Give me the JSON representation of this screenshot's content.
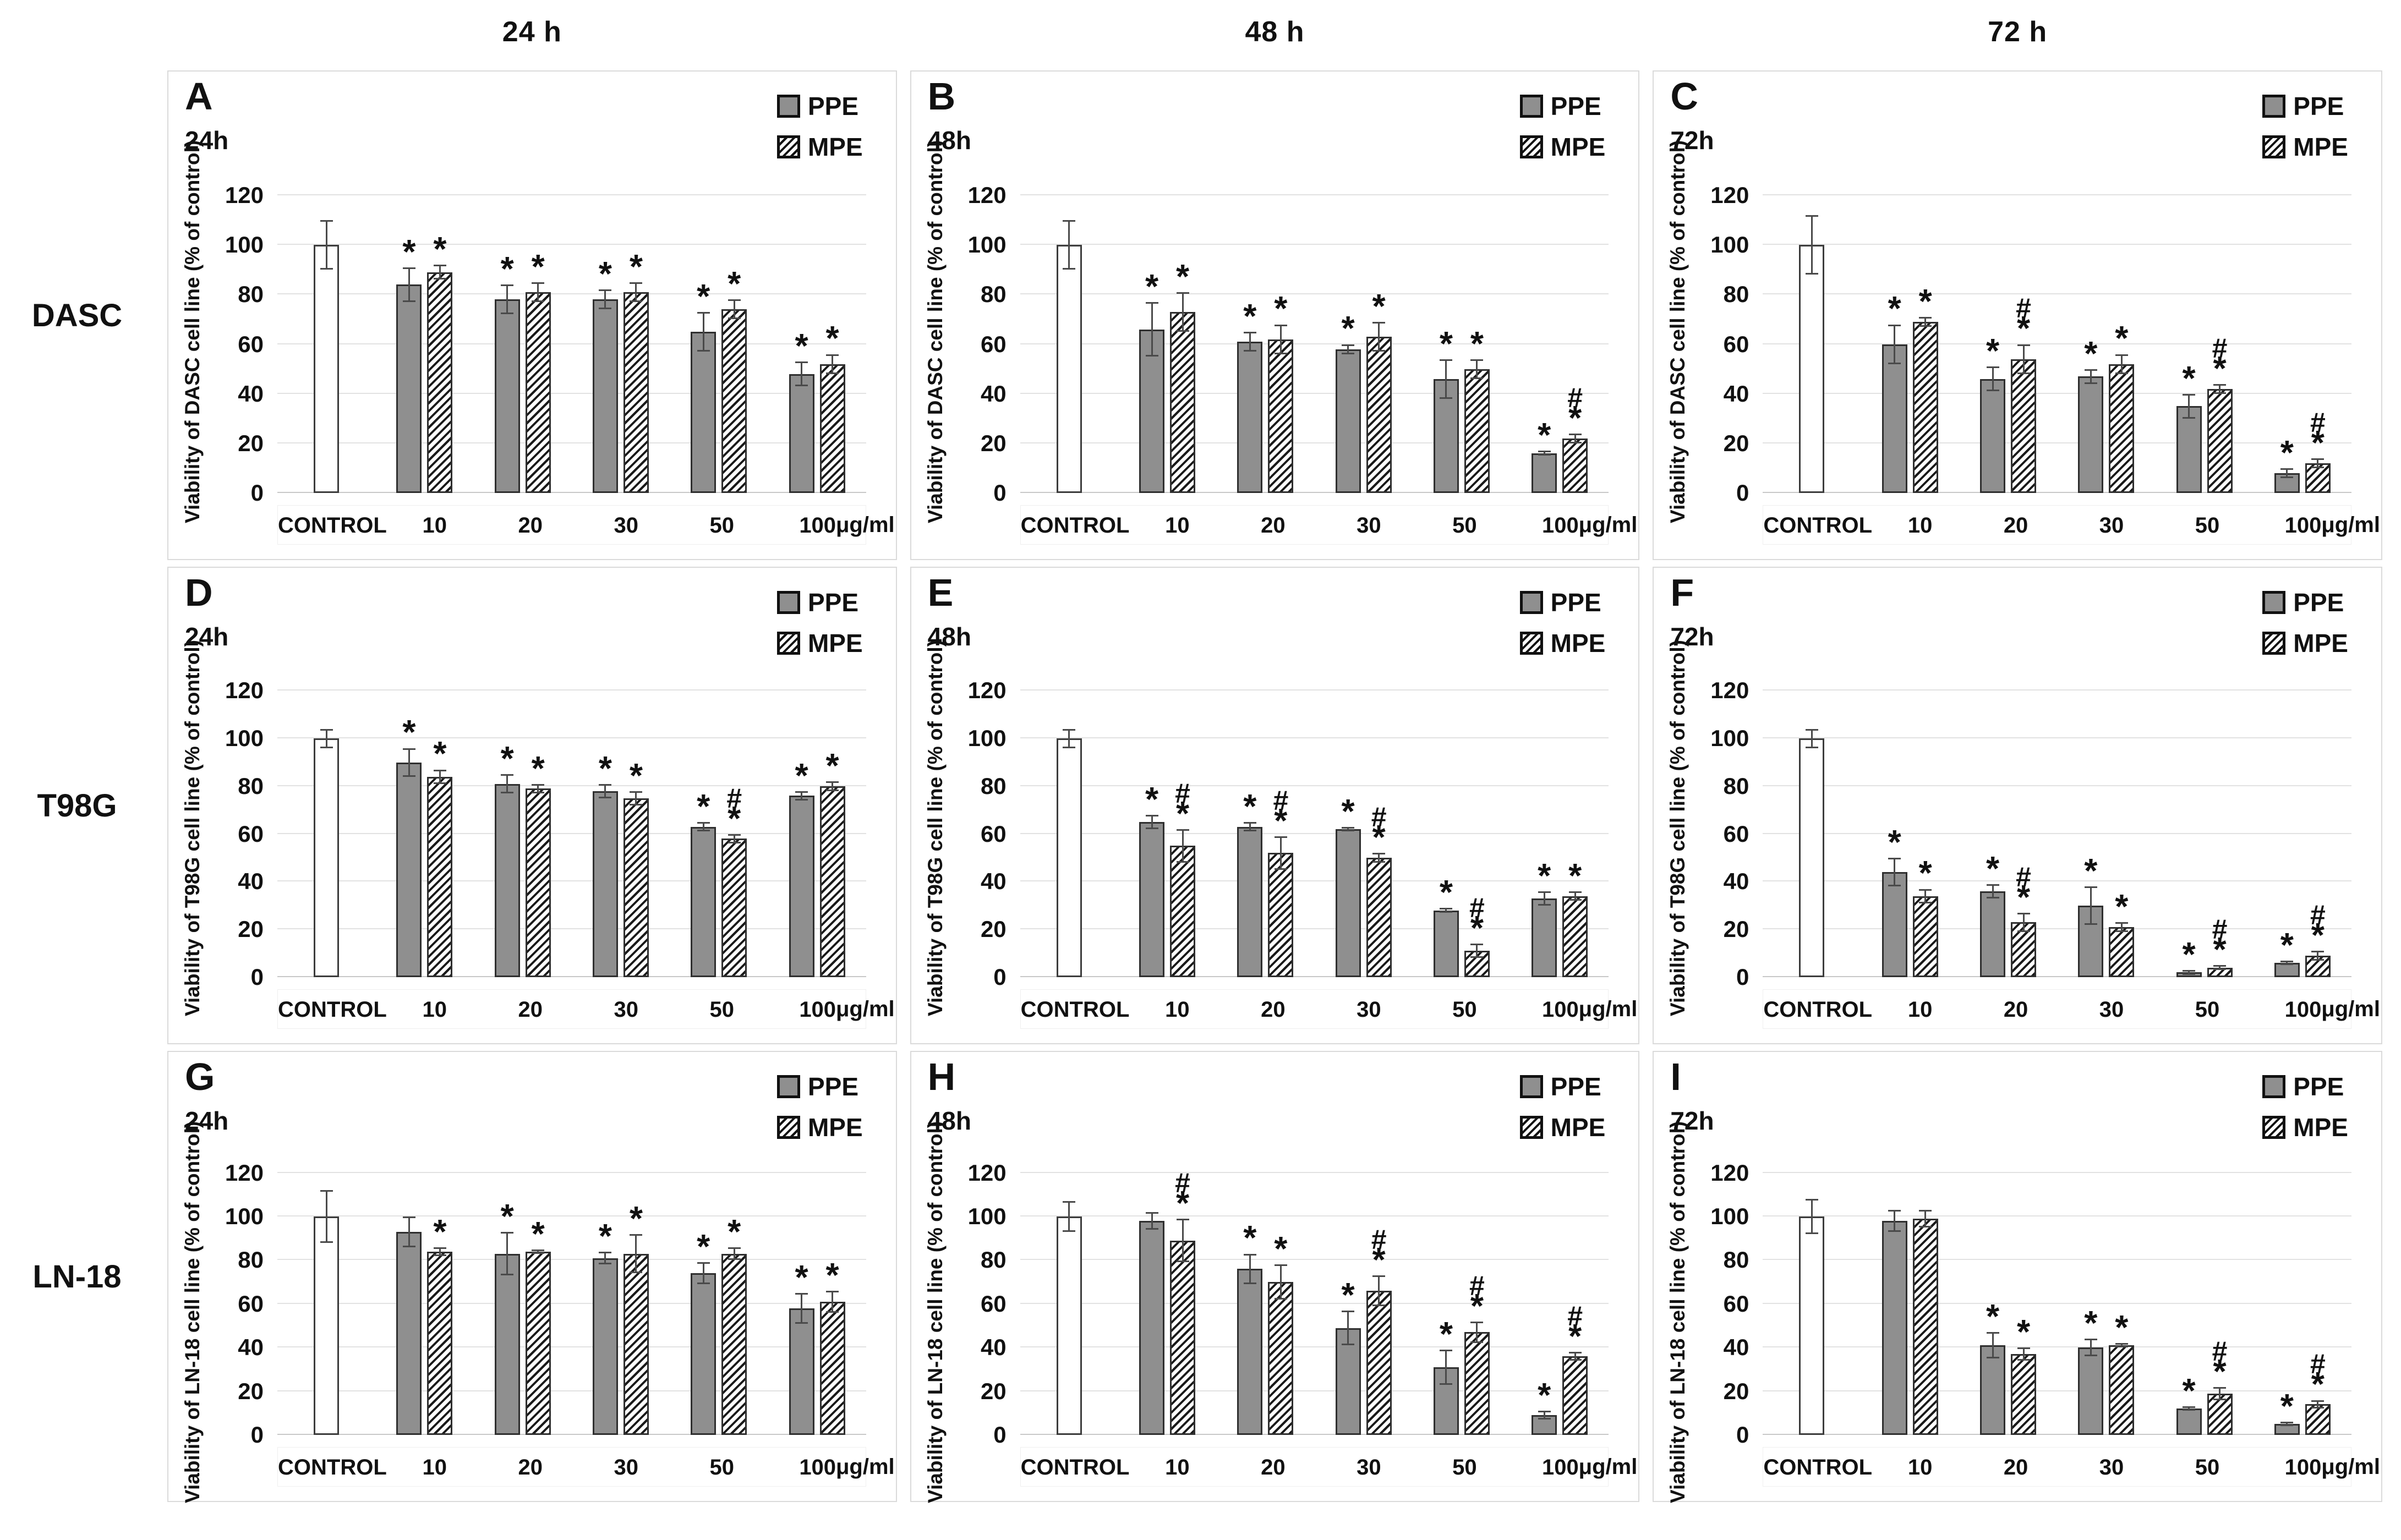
{
  "figure": {
    "col_headers": [
      "24 h",
      "48 h",
      "72 h"
    ],
    "row_labels": [
      "DASC",
      "T98G",
      "LN-18"
    ],
    "legend": [
      "PPE",
      "MPE"
    ],
    "x_categories": [
      "CONTROL",
      "10",
      "20",
      "30",
      "50",
      "100"
    ],
    "x_unit": "μg/ml",
    "y_ticks": [
      0,
      20,
      40,
      60,
      80,
      100,
      120
    ],
    "y_max": 130,
    "colors": {
      "ppe_fill": "#8f8f8f",
      "control_fill": "#ffffff",
      "bar_border": "#2f2f2f",
      "grid": "#e2e2e2",
      "hatch": "#1a1a1a",
      "text": "#111111"
    }
  },
  "chart_data": [
    {
      "type": "bar",
      "panel": "A",
      "row": "DASC",
      "time": "24h",
      "ylabel": "Viability of DASC cell line (% of control)",
      "control": {
        "label": "CONTROL",
        "value": 100,
        "err": 10
      },
      "series": [
        {
          "name": "PPE",
          "values": [
            84,
            78,
            78,
            65,
            48
          ],
          "err": [
            7,
            6,
            4,
            8,
            5
          ],
          "sig": [
            "*",
            "*",
            "*",
            "*",
            "*"
          ]
        },
        {
          "name": "MPE",
          "values": [
            89,
            81,
            81,
            74,
            52
          ],
          "err": [
            3,
            4,
            4,
            4,
            4
          ],
          "sig": [
            "*",
            "*",
            "*",
            "*",
            "*"
          ]
        }
      ]
    },
    {
      "type": "bar",
      "panel": "B",
      "row": "DASC",
      "time": "48h",
      "ylabel": "Viability of DASC cell line (% of control)",
      "control": {
        "label": "CONTROL",
        "value": 100,
        "err": 10
      },
      "series": [
        {
          "name": "PPE",
          "values": [
            66,
            61,
            58,
            46,
            16
          ],
          "err": [
            11,
            4,
            2,
            8,
            1
          ],
          "sig": [
            "*",
            "*",
            "*",
            "*",
            "*"
          ]
        },
        {
          "name": "MPE",
          "values": [
            73,
            62,
            63,
            50,
            22
          ],
          "err": [
            8,
            6,
            6,
            4,
            2
          ],
          "sig": [
            "*",
            "*",
            "*",
            "*",
            "#*"
          ]
        }
      ]
    },
    {
      "type": "bar",
      "panel": "C",
      "row": "DASC",
      "time": "72h",
      "ylabel": "Viability of DASC cell line (% of control)",
      "control": {
        "label": "CONTROL",
        "value": 100,
        "err": 12
      },
      "series": [
        {
          "name": "PPE",
          "values": [
            60,
            46,
            47,
            35,
            8
          ],
          "err": [
            8,
            5,
            3,
            5,
            2
          ],
          "sig": [
            "*",
            "*",
            "*",
            "*",
            "*"
          ]
        },
        {
          "name": "MPE",
          "values": [
            69,
            54,
            52,
            42,
            12
          ],
          "err": [
            2,
            6,
            4,
            2,
            2
          ],
          "sig": [
            "*",
            "#*",
            "*",
            "#*",
            "#*"
          ]
        }
      ]
    },
    {
      "type": "bar",
      "panel": "D",
      "row": "T98G",
      "time": "24h",
      "ylabel": "Viability of T98G cell line (% of control)",
      "control": {
        "label": "CONTROL",
        "value": 100,
        "err": 4
      },
      "series": [
        {
          "name": "PPE",
          "values": [
            90,
            81,
            78,
            63,
            76
          ],
          "err": [
            6,
            4,
            3,
            2,
            2
          ],
          "sig": [
            "*",
            "*",
            "*",
            "*",
            "*"
          ]
        },
        {
          "name": "MPE",
          "values": [
            84,
            79,
            75,
            58,
            80
          ],
          "err": [
            3,
            2,
            3,
            2,
            2
          ],
          "sig": [
            "*",
            "*",
            "*",
            "#*",
            "*"
          ]
        }
      ]
    },
    {
      "type": "bar",
      "panel": "E",
      "row": "T98G",
      "time": "48h",
      "ylabel": "Viability of T98G cell line (% of control)",
      "control": {
        "label": "CONTROL",
        "value": 100,
        "err": 4
      },
      "series": [
        {
          "name": "PPE",
          "values": [
            65,
            63,
            62,
            28,
            33
          ],
          "err": [
            3,
            2,
            1,
            1,
            3
          ],
          "sig": [
            "*",
            "*",
            "*",
            "*",
            "*"
          ]
        },
        {
          "name": "MPE",
          "values": [
            55,
            52,
            50,
            11,
            34
          ],
          "err": [
            7,
            7,
            2,
            3,
            2
          ],
          "sig": [
            "#*",
            "#*",
            "#*",
            "#*",
            "*"
          ]
        }
      ]
    },
    {
      "type": "bar",
      "panel": "F",
      "row": "T98G",
      "time": "72h",
      "ylabel": "Viability of T98G cell line (% of control)",
      "control": {
        "label": "CONTROL",
        "value": 100,
        "err": 4
      },
      "series": [
        {
          "name": "PPE",
          "values": [
            44,
            36,
            30,
            2,
            6
          ],
          "err": [
            6,
            3,
            8,
            1,
            1
          ],
          "sig": [
            "*",
            "*",
            "*",
            "*",
            "*"
          ]
        },
        {
          "name": "MPE",
          "values": [
            34,
            23,
            21,
            4,
            9
          ],
          "err": [
            3,
            4,
            2,
            1,
            2
          ],
          "sig": [
            "*",
            "#*",
            "*",
            "#*",
            "#*"
          ]
        }
      ]
    },
    {
      "type": "bar",
      "panel": "G",
      "row": "LN-18",
      "time": "24h",
      "ylabel": "Viability of LN-18 cell line (% of control)",
      "control": {
        "label": "CONTROL",
        "value": 100,
        "err": 12
      },
      "series": [
        {
          "name": "PPE",
          "values": [
            93,
            83,
            81,
            74,
            58
          ],
          "err": [
            7,
            10,
            3,
            5,
            7
          ],
          "sig": [
            "",
            "*",
            "*",
            "*",
            "*"
          ]
        },
        {
          "name": "MPE",
          "values": [
            84,
            84,
            83,
            83,
            61
          ],
          "err": [
            2,
            1,
            9,
            3,
            5
          ],
          "sig": [
            "*",
            "*",
            "*",
            "*",
            "*"
          ]
        }
      ]
    },
    {
      "type": "bar",
      "panel": "H",
      "row": "LN-18",
      "time": "48h",
      "ylabel": "Viability of LN-18 cell line (% of control)",
      "control": {
        "label": "CONTROL",
        "value": 100,
        "err": 7
      },
      "series": [
        {
          "name": "PPE",
          "values": [
            98,
            76,
            49,
            31,
            9
          ],
          "err": [
            4,
            7,
            8,
            8,
            2
          ],
          "sig": [
            "",
            "*",
            "*",
            "*",
            "*"
          ]
        },
        {
          "name": "MPE",
          "values": [
            89,
            70,
            66,
            47,
            36
          ],
          "err": [
            10,
            8,
            7,
            5,
            2
          ],
          "sig": [
            "#*",
            "*",
            "#*",
            "#*",
            "#*"
          ]
        }
      ]
    },
    {
      "type": "bar",
      "panel": "I",
      "row": "LN-18",
      "time": "72h",
      "ylabel": "Viability of LN-18 cell line (% of control)",
      "control": {
        "label": "CONTROL",
        "value": 100,
        "err": 8
      },
      "series": [
        {
          "name": "PPE",
          "values": [
            98,
            41,
            40,
            12,
            5
          ],
          "err": [
            5,
            6,
            4,
            1,
            1
          ],
          "sig": [
            "",
            "*",
            "*",
            "*",
            "*"
          ]
        },
        {
          "name": "MPE",
          "values": [
            99,
            37,
            41,
            19,
            14
          ],
          "err": [
            4,
            3,
            1,
            3,
            2
          ],
          "sig": [
            "",
            "*",
            "*",
            "#*",
            "#*"
          ]
        }
      ]
    }
  ]
}
